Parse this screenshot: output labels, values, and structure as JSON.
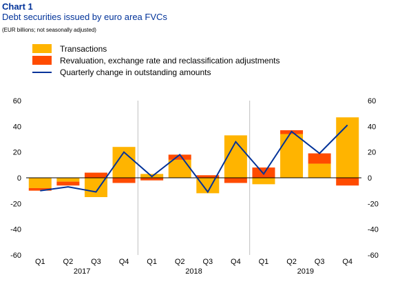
{
  "header": {
    "number": "Chart 1",
    "title": "Debt securities issued by euro area FVCs",
    "subtitle": "(EUR billions; not seasonally adjusted)"
  },
  "colors": {
    "transactions": "#FFB400",
    "revaluation": "#FF4B00",
    "line": "#003299",
    "grid": "#bfbfbf"
  },
  "chart_data": {
    "type": "bar",
    "stacked": true,
    "categories": [
      "Q1",
      "Q2",
      "Q3",
      "Q4",
      "Q1",
      "Q2",
      "Q3",
      "Q4",
      "Q1",
      "Q2",
      "Q3",
      "Q4"
    ],
    "year_labels": [
      "2017",
      "2018",
      "2019"
    ],
    "ylim": [
      -60,
      60
    ],
    "yticks": [
      -60,
      -40,
      -20,
      0,
      20,
      40,
      60
    ],
    "grid": "vertical separators between years",
    "legend_position": "top-left",
    "series": [
      {
        "name": "Transactions",
        "kind": "bar",
        "values": [
          -8,
          -3,
          -15,
          24,
          3,
          14,
          -12,
          33,
          -5,
          34,
          11,
          47
        ]
      },
      {
        "name": "Revaluation, exchange rate and reclassification adjustments",
        "kind": "bar",
        "values": [
          -2,
          -3,
          4,
          -4,
          -2,
          4,
          2,
          -4,
          8,
          3,
          8,
          -6
        ]
      },
      {
        "name": "Quarterly change in outstanding amounts",
        "kind": "line",
        "values": [
          -10,
          -7,
          -11,
          20,
          1,
          18,
          -11,
          28,
          3,
          36,
          19,
          41
        ]
      }
    ]
  }
}
